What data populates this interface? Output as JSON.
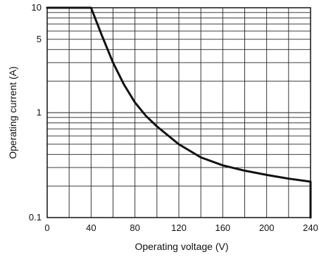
{
  "chart_data": {
    "type": "line",
    "xlabel": "Operating voltage (V)",
    "ylabel": "Operating current (A)",
    "x_scale": "linear",
    "y_scale": "log",
    "xlim": [
      0,
      240
    ],
    "ylim": [
      0.1,
      10
    ],
    "x_ticks": [
      0,
      40,
      80,
      120,
      160,
      200,
      240
    ],
    "x_tick_labels": [
      "0",
      "40",
      "80",
      "120",
      "160",
      "200",
      "240"
    ],
    "y_ticks": [
      0.1,
      1,
      5,
      10
    ],
    "y_tick_labels": [
      "0.1",
      "1",
      "5",
      "10"
    ],
    "grid": true,
    "series": [
      {
        "x": [
          0,
          40,
          50,
          60,
          70,
          80,
          90,
          100,
          120,
          140,
          160,
          180,
          200,
          220,
          240,
          240
        ],
        "y": [
          10,
          10,
          5.4,
          3.0,
          1.85,
          1.25,
          0.93,
          0.74,
          0.5,
          0.375,
          0.315,
          0.28,
          0.255,
          0.235,
          0.22,
          0.1
        ],
        "color": "#111111"
      }
    ]
  }
}
